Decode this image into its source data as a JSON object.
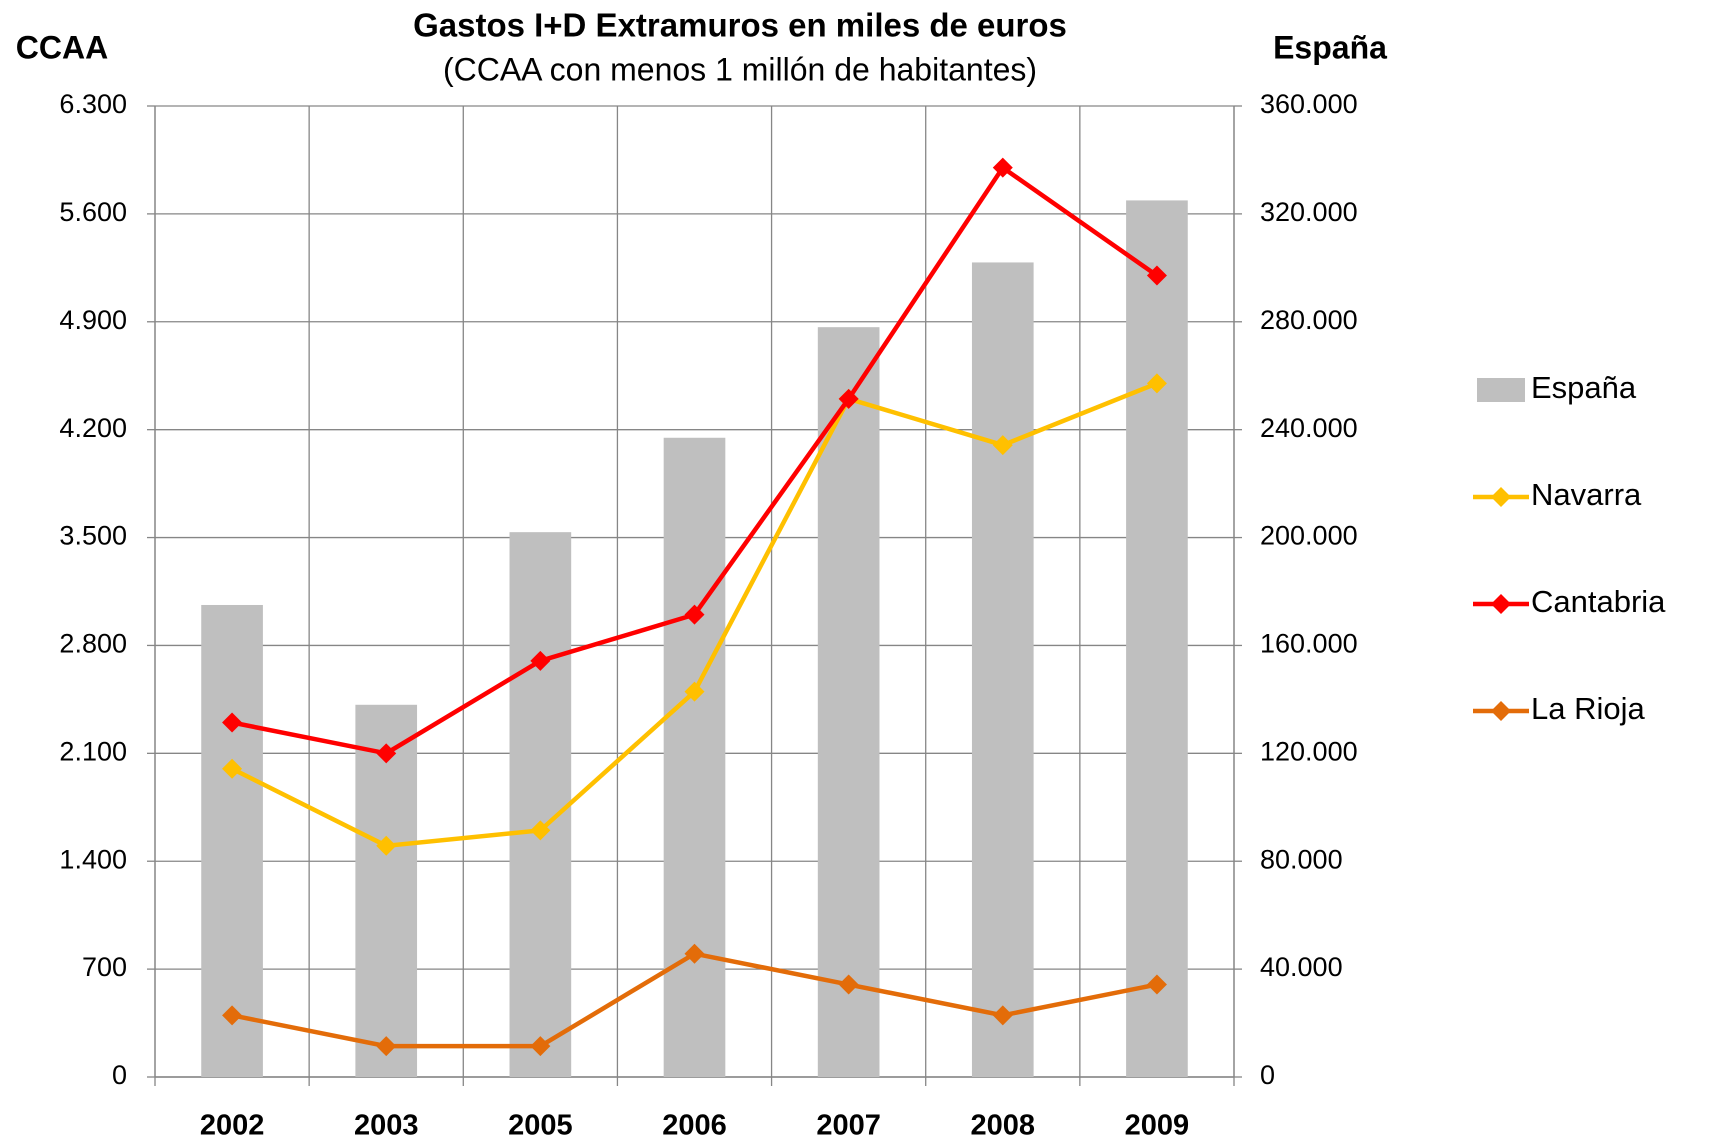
{
  "chart_data": {
    "type": "bar-line",
    "title": "Gastos I+D Extramuros en miles de euros",
    "subtitle": "(CCAA con menos 1 millón de habitantes)",
    "y_label": "CCAA",
    "y2_label": "España",
    "categories": [
      "2002",
      "2003",
      "2005",
      "2006",
      "2007",
      "2008",
      "2009"
    ],
    "series": [
      {
        "name": "España",
        "type": "bar",
        "axis": "y2",
        "color": "#bfbfbf",
        "values": [
          175000,
          138000,
          202000,
          237000,
          278000,
          302000,
          325000
        ]
      },
      {
        "name": "Navarra",
        "type": "line",
        "color": "#ffc000",
        "values": [
          2000,
          1500,
          1600,
          2500,
          4400,
          4100,
          4500
        ]
      },
      {
        "name": "Cantabria",
        "type": "line",
        "color": "#ff0000",
        "values": [
          2300,
          2100,
          2700,
          3000,
          4400,
          5900,
          5200
        ]
      },
      {
        "name": "La Rioja",
        "type": "line",
        "color": "#e36c09",
        "values": [
          400,
          200,
          200,
          800,
          600,
          400,
          600
        ]
      }
    ],
    "ylim": [
      0,
      6300
    ],
    "yticks": [
      0,
      700,
      {
        "value": 1400,
        "label": "1.400"
      },
      {
        "value": 2100,
        "label": "2.100"
      },
      {
        "value": 2800,
        "label": "2.800"
      },
      {
        "value": 3500,
        "label": "3.500"
      },
      {
        "value": 4200,
        "label": "4.200"
      },
      {
        "value": 4900,
        "label": "4.900"
      },
      {
        "value": 5600,
        "label": "5.600"
      },
      {
        "value": 6300,
        "label": "6.300"
      }
    ],
    "y2lim": [
      0,
      360000
    ],
    "y2ticks": [
      0,
      {
        "value": 40000,
        "label": "40.000"
      },
      {
        "value": 80000,
        "label": "80.000"
      },
      {
        "value": 120000,
        "label": "120.000"
      },
      {
        "value": 160000,
        "label": "160.000"
      },
      {
        "value": 200000,
        "label": "200.000"
      },
      {
        "value": 240000,
        "label": "240.000"
      },
      {
        "value": 280000,
        "label": "280.000"
      },
      {
        "value": 320000,
        "label": "320.000"
      },
      {
        "value": 360000,
        "label": "360.000"
      }
    ],
    "grid": true,
    "legend": "right"
  }
}
